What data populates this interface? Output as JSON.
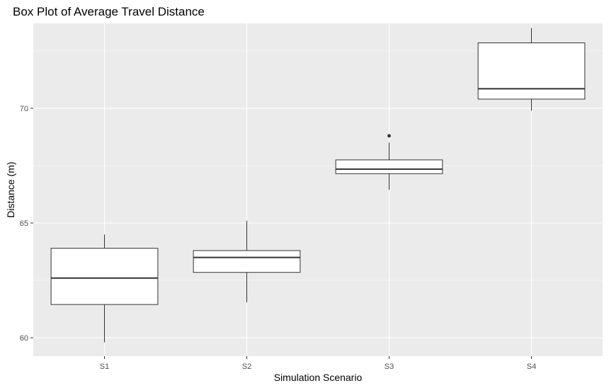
{
  "colors": {
    "panel_background": "#ebebeb",
    "grid_major": "#ffffff",
    "box_fill": "#ffffff",
    "box_stroke": "#333333",
    "tick_text": "#4d4d4d"
  },
  "chart_data": {
    "type": "box",
    "title": "Box Plot of Average Travel Distance",
    "xlabel": "Simulation Scenario",
    "ylabel": "Distance (m)",
    "ylim": [
      59.2,
      73.7
    ],
    "yticks": [
      60,
      65,
      70
    ],
    "grid": true,
    "categories": [
      "S1",
      "S2",
      "S3",
      "S4"
    ],
    "boxes": [
      {
        "category": "S1",
        "whisker_low": 59.8,
        "q1": 61.45,
        "median": 62.6,
        "q3": 63.9,
        "whisker_high": 64.5,
        "outliers": []
      },
      {
        "category": "S2",
        "whisker_low": 61.55,
        "q1": 62.85,
        "median": 63.5,
        "q3": 63.8,
        "whisker_high": 65.1,
        "outliers": []
      },
      {
        "category": "S3",
        "whisker_low": 66.45,
        "q1": 67.15,
        "median": 67.35,
        "q3": 67.75,
        "whisker_high": 68.5,
        "outliers": [
          68.8
        ]
      },
      {
        "category": "S4",
        "whisker_low": 69.9,
        "q1": 70.4,
        "median": 70.85,
        "q3": 72.85,
        "whisker_high": 73.5,
        "outliers": []
      }
    ]
  }
}
